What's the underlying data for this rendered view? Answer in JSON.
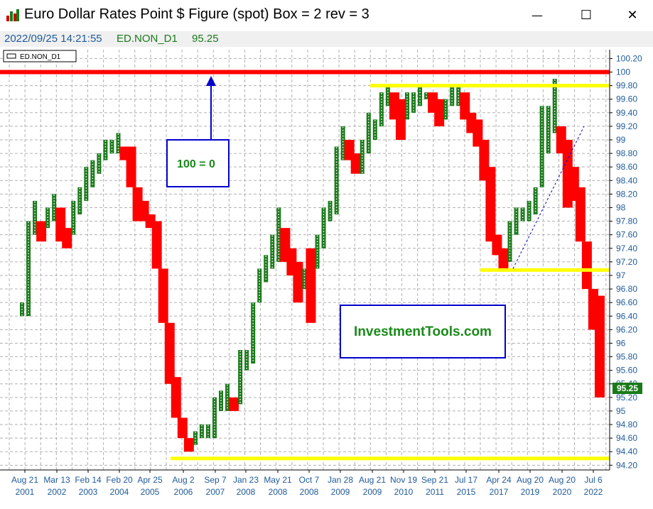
{
  "window": {
    "title": "Euro Dollar Rates Point $ Figure (spot) Box = 2 rev = 3",
    "minimize_symbol": "—",
    "maximize_symbol": "☐",
    "close_symbol": "✕",
    "app_icon": "bar-chart-app-icon"
  },
  "info_bar": {
    "datetime": "2022/09/25 14:21:55",
    "symbol": "ED.NON_D1",
    "price": "95.25"
  },
  "colors": {
    "up_column": "#1a7a1a",
    "down_column": "#ff0000",
    "resistance_line": "#ff0000",
    "support_line": "#ffff00",
    "annotation_blue": "#0000cc",
    "annotation_text_green": "#1a8a1a",
    "axis_text": "#1f5a99"
  },
  "chart_data": {
    "type": "point-and-figure",
    "legend": "ED.NON_D1",
    "box_size": "2",
    "reversal": "3",
    "last_price": 95.25,
    "last_price_label": "95.25",
    "ylim": [
      94.13,
      100.33
    ],
    "yticks": [
      "100.20",
      "100",
      "99.80",
      "99.60",
      "99.40",
      "99.20",
      "99",
      "98.80",
      "98.60",
      "98.40",
      "98.20",
      "98",
      "97.80",
      "97.60",
      "97.40",
      "97.20",
      "97",
      "96.80",
      "96.60",
      "96.40",
      "96.20",
      "96",
      "95.80",
      "95.60",
      "95.40",
      "95.20",
      "95",
      "94.80",
      "94.60",
      "94.40",
      "94.20"
    ],
    "xticks": [
      {
        "date": "Aug 21",
        "year": "2001"
      },
      {
        "date": "Mar 13",
        "year": "2002"
      },
      {
        "date": "Feb 14",
        "year": "2003"
      },
      {
        "date": "Feb 20",
        "year": "2004"
      },
      {
        "date": "Apr 25",
        "year": "2005"
      },
      {
        "date": "Aug 2",
        "year": "2006"
      },
      {
        "date": "Sep 7",
        "year": "2007"
      },
      {
        "date": "Jan 23",
        "year": "2008"
      },
      {
        "date": "May 21",
        "year": "2008"
      },
      {
        "date": "Oct 7",
        "year": "2008"
      },
      {
        "date": "Jan 28",
        "year": "2009"
      },
      {
        "date": "Aug 21",
        "year": "2009"
      },
      {
        "date": "Nov 19",
        "year": "2010"
      },
      {
        "date": "Sep 21",
        "year": "2011"
      },
      {
        "date": "Jul 17",
        "year": "2015"
      },
      {
        "date": "Apr 24",
        "year": "2017"
      },
      {
        "date": "Aug 20",
        "year": "2019"
      },
      {
        "date": "Aug 20",
        "year": "2020"
      },
      {
        "date": "Jul 6",
        "year": "2022"
      }
    ],
    "columns": [
      [
        96.6,
        96.4
      ],
      [
        97.8,
        96.4
      ],
      [
        98.1,
        97.6
      ],
      [
        97.8,
        97.5
      ],
      [
        98.0,
        97.7
      ],
      [
        98.2,
        97.8
      ],
      [
        98.0,
        97.5
      ],
      [
        97.7,
        97.4
      ],
      [
        98.1,
        97.6
      ],
      [
        98.3,
        97.9
      ],
      [
        98.6,
        98.1
      ],
      [
        98.7,
        98.3
      ],
      [
        98.8,
        98.5
      ],
      [
        99.0,
        98.7
      ],
      [
        99.0,
        98.8
      ],
      [
        99.1,
        98.8
      ],
      [
        98.9,
        98.7
      ],
      [
        98.9,
        98.3
      ],
      [
        98.3,
        97.8
      ],
      [
        98.1,
        97.8
      ],
      [
        97.9,
        97.7
      ],
      [
        97.8,
        97.1
      ],
      [
        97.1,
        96.3
      ],
      [
        96.3,
        95.4
      ],
      [
        95.5,
        94.9
      ],
      [
        94.9,
        94.6
      ],
      [
        94.6,
        94.4
      ],
      [
        94.7,
        94.5
      ],
      [
        94.8,
        94.6
      ],
      [
        94.8,
        94.6
      ],
      [
        95.2,
        94.6
      ],
      [
        95.3,
        95.0
      ],
      [
        95.4,
        95.0
      ],
      [
        95.2,
        95.0
      ],
      [
        95.9,
        95.1
      ],
      [
        95.9,
        95.6
      ],
      [
        96.6,
        95.7
      ],
      [
        97.1,
        96.6
      ],
      [
        97.3,
        96.9
      ],
      [
        97.6,
        97.1
      ],
      [
        98.0,
        97.2
      ],
      [
        97.7,
        97.2
      ],
      [
        97.4,
        97.0
      ],
      [
        97.2,
        96.6
      ],
      [
        97.1,
        96.8
      ],
      [
        97.4,
        96.3
      ],
      [
        97.6,
        97.1
      ],
      [
        98.0,
        97.4
      ],
      [
        98.1,
        97.8
      ],
      [
        98.9,
        97.9
      ],
      [
        99.2,
        98.7
      ],
      [
        99.0,
        98.7
      ],
      [
        98.8,
        98.5
      ],
      [
        99.0,
        98.5
      ],
      [
        99.4,
        98.8
      ],
      [
        99.3,
        99.0
      ],
      [
        99.7,
        99.2
      ],
      [
        99.8,
        99.5
      ],
      [
        99.7,
        99.3
      ],
      [
        99.6,
        99.0
      ],
      [
        99.7,
        99.3
      ],
      [
        99.7,
        99.4
      ],
      [
        99.8,
        99.5
      ],
      [
        99.7,
        99.6
      ],
      [
        99.7,
        99.4
      ],
      [
        99.6,
        99.2
      ],
      [
        99.6,
        99.3
      ],
      [
        99.8,
        99.5
      ],
      [
        99.8,
        99.5
      ],
      [
        99.7,
        99.3
      ],
      [
        99.4,
        99.1
      ],
      [
        99.3,
        98.9
      ],
      [
        99.0,
        98.4
      ],
      [
        98.6,
        97.5
      ],
      [
        97.6,
        97.3
      ],
      [
        97.4,
        97.1
      ],
      [
        97.8,
        97.2
      ],
      [
        98.0,
        97.6
      ],
      [
        98.0,
        97.8
      ],
      [
        98.1,
        97.8
      ],
      [
        98.3,
        97.9
      ],
      [
        99.5,
        98.3
      ],
      [
        99.5,
        98.8
      ],
      [
        99.9,
        99.1
      ],
      [
        99.2,
        98.8
      ],
      [
        99.0,
        98.0
      ],
      [
        98.6,
        98.1
      ],
      [
        98.3,
        97.5
      ],
      [
        97.5,
        96.8
      ],
      [
        96.8,
        96.2
      ],
      [
        96.7,
        95.2
      ]
    ]
  },
  "annotations": {
    "arrow_label": "100 = 0",
    "watermark": "InvestmentTools.com"
  }
}
